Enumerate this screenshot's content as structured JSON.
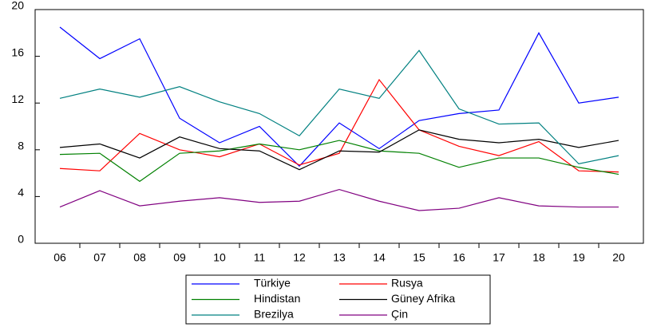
{
  "chart_data": {
    "type": "line",
    "categories": [
      "06",
      "07",
      "08",
      "09",
      "10",
      "11",
      "12",
      "13",
      "14",
      "15",
      "16",
      "17",
      "18",
      "19",
      "20"
    ],
    "series": [
      {
        "name": "Türkiye",
        "color": "#0000ff",
        "values": [
          18.5,
          15.8,
          17.5,
          10.7,
          8.6,
          10.0,
          6.6,
          10.3,
          8.1,
          10.5,
          11.1,
          11.4,
          18.0,
          12.0,
          12.5
        ]
      },
      {
        "name": "Rusya",
        "color": "#ff0000",
        "values": [
          6.4,
          6.2,
          9.4,
          8.0,
          7.4,
          8.5,
          6.7,
          7.7,
          14.0,
          9.7,
          8.3,
          7.5,
          8.7,
          6.2,
          6.1
        ]
      },
      {
        "name": "Hindistan",
        "color": "#008000",
        "values": [
          7.6,
          7.7,
          5.3,
          7.7,
          7.9,
          8.5,
          8.0,
          8.8,
          7.9,
          7.7,
          6.5,
          7.3,
          7.3,
          6.5,
          5.9
        ]
      },
      {
        "name": "Güney Afrika",
        "color": "#000000",
        "values": [
          8.2,
          8.5,
          7.3,
          9.1,
          8.1,
          7.9,
          6.3,
          7.9,
          7.8,
          9.7,
          8.9,
          8.6,
          8.9,
          8.2,
          8.8
        ]
      },
      {
        "name": "Brezilya",
        "color": "#008080",
        "values": [
          12.4,
          13.2,
          12.5,
          13.4,
          12.1,
          11.1,
          9.2,
          13.2,
          12.4,
          16.5,
          11.5,
          10.2,
          10.3,
          6.8,
          7.5
        ]
      },
      {
        "name": "Çin",
        "color": "#800080",
        "values": [
          3.1,
          4.5,
          3.2,
          3.6,
          3.9,
          3.5,
          3.6,
          4.6,
          3.6,
          2.8,
          3.0,
          3.9,
          3.2,
          3.1,
          3.1
        ]
      }
    ],
    "ylim": [
      0,
      20
    ],
    "yticks": [
      0,
      4,
      8,
      12,
      16,
      20
    ],
    "grid": false
  }
}
